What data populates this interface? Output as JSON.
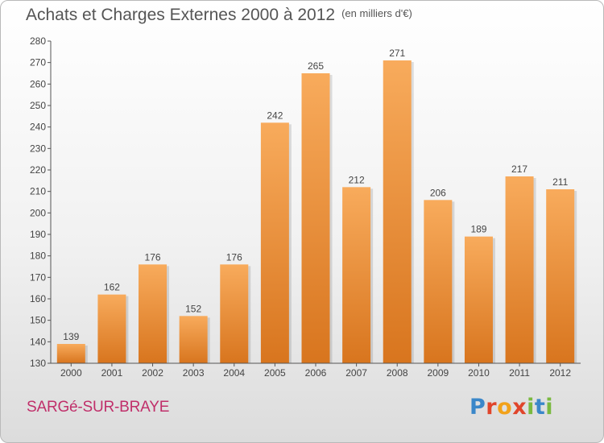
{
  "chart_data": {
    "type": "bar",
    "title": "Achats et Charges Externes 2000 à 2012",
    "unit_label": "(en milliers d'€)",
    "categories": [
      "2000",
      "2001",
      "2002",
      "2003",
      "2004",
      "2005",
      "2006",
      "2007",
      "2008",
      "2009",
      "2010",
      "2011",
      "2012"
    ],
    "values": [
      139,
      162,
      176,
      152,
      176,
      242,
      265,
      212,
      271,
      206,
      189,
      217,
      211
    ],
    "ylim": [
      130,
      280
    ],
    "yticks": [
      130,
      140,
      150,
      160,
      170,
      180,
      190,
      200,
      210,
      220,
      230,
      240,
      250,
      260,
      270,
      280
    ],
    "grid": false,
    "xlabel": "",
    "ylabel": ""
  },
  "footer": {
    "commune": "SARGé-SUR-BRAYE",
    "logo_letters": [
      "P",
      "r",
      "o",
      "x",
      "i",
      "t",
      "i"
    ]
  },
  "colors": {
    "bar_top": "#f8ab5c",
    "bar_bottom": "#d8751e",
    "axis": "#555555",
    "commune": "#c02f6a"
  }
}
